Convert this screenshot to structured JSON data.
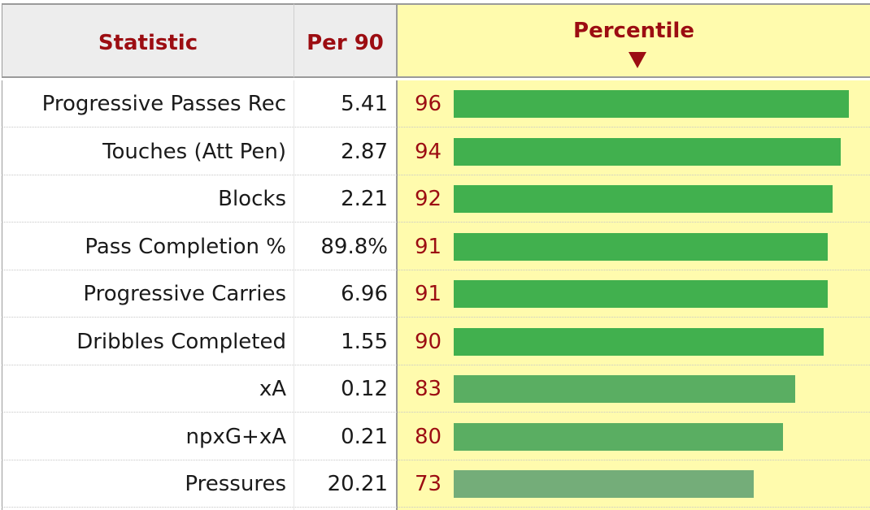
{
  "header": {
    "statistic_label": "Statistic",
    "per90_label": "Per 90",
    "percentile_label": "Percentile",
    "sort_icon": "caret-down-icon"
  },
  "colors": {
    "header_text": "#9c0d12",
    "percentile_bg": "#fffbad",
    "bar_high": "#41b04e",
    "bar_mid": "#5aae62",
    "bar_low": "#74ad79"
  },
  "rows": [
    {
      "statistic": "Progressive Passes Rec",
      "per90": "5.41",
      "percentile": 96
    },
    {
      "statistic": "Touches (Att Pen)",
      "per90": "2.87",
      "percentile": 94
    },
    {
      "statistic": "Blocks",
      "per90": "2.21",
      "percentile": 92
    },
    {
      "statistic": "Pass Completion %",
      "per90": "89.8%",
      "percentile": 91
    },
    {
      "statistic": "Progressive Carries",
      "per90": "6.96",
      "percentile": 91
    },
    {
      "statistic": "Dribbles Completed",
      "per90": "1.55",
      "percentile": 90
    },
    {
      "statistic": "xA",
      "per90": "0.12",
      "percentile": 83
    },
    {
      "statistic": "npxG+xA",
      "per90": "0.21",
      "percentile": 80
    },
    {
      "statistic": "Pressures",
      "per90": "20.21",
      "percentile": 73
    }
  ]
}
